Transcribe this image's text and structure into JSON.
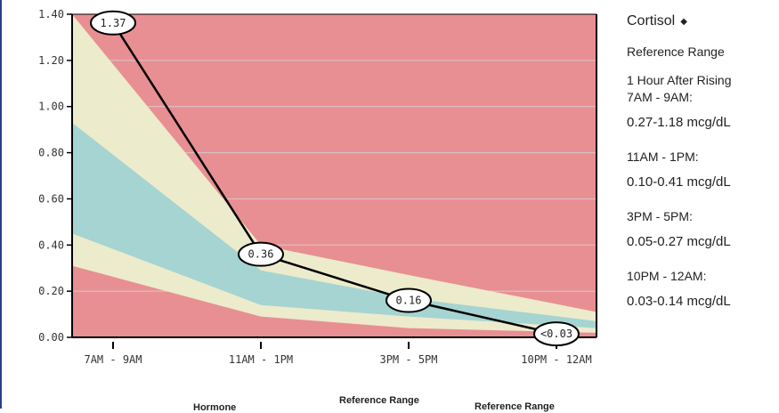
{
  "chart_data": {
    "type": "area",
    "title": "",
    "xlabel": "",
    "ylabel": "",
    "categories": [
      "7AM - 9AM",
      "11AM - 1PM",
      "3PM - 5PM",
      "10PM - 12AM"
    ],
    "ylim": [
      0,
      1.4
    ],
    "yticks": [
      "0.00",
      "0.20",
      "0.40",
      "0.60",
      "0.80",
      "1.00",
      "1.20",
      "1.40"
    ],
    "bands": {
      "outer_upper": [
        1.4,
        0.4,
        0.27,
        0.11
      ],
      "inner_upper": [
        0.93,
        0.29,
        0.17,
        0.07
      ],
      "inner_lower": [
        0.45,
        0.14,
        0.09,
        0.04
      ],
      "outer_lower": [
        0.31,
        0.09,
        0.04,
        0.02
      ]
    },
    "series": [
      {
        "values": [
          1.37,
          0.36,
          0.16,
          0.015
        ]
      }
    ],
    "data_labels": [
      "1.37",
      "0.36",
      "0.16",
      "<0.03"
    ],
    "colors": {
      "background": "#e88f93",
      "outer_band": "#ecebcc",
      "inner_band": "#a5d4d2",
      "line": "#000000",
      "grid": "#d8c9c9"
    },
    "grid": true
  },
  "panel": {
    "title": "Cortisol",
    "diamond": "◆",
    "reference_heading": "Reference Range",
    "ranges": [
      {
        "label": [
          "1 Hour After Rising",
          "7AM - 9AM:"
        ],
        "value": "0.27-1.18 mcg/dL"
      },
      {
        "label": [
          "11AM - 1PM:"
        ],
        "value": "0.10-0.41 mcg/dL"
      },
      {
        "label": [
          "3PM - 5PM:"
        ],
        "value": "0.05-0.27 mcg/dL"
      },
      {
        "label": [
          "10PM - 12AM:"
        ],
        "value": "0.03-0.14 mcg/dL"
      }
    ]
  },
  "table_headers": {
    "hormone": "Hormone",
    "reference_range_1": "Reference Range",
    "reference_range_2": "Reference Range"
  }
}
